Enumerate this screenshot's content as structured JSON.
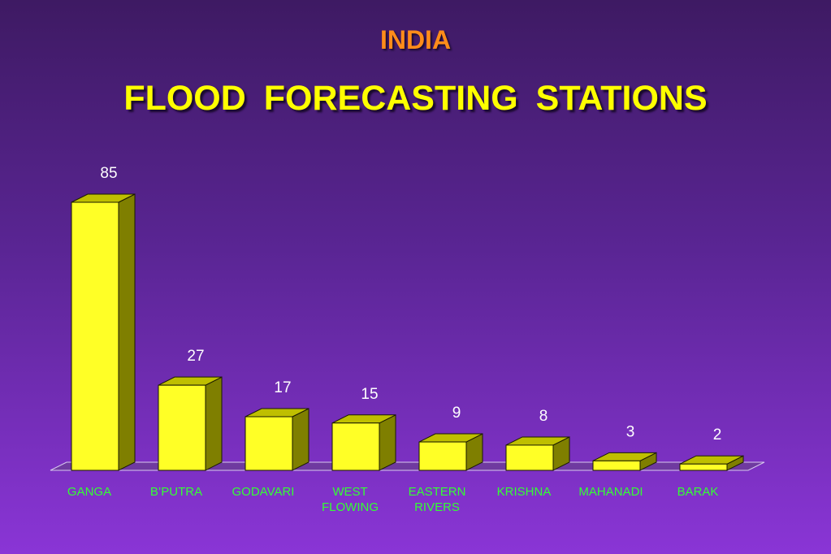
{
  "header": {
    "title": "INDIA",
    "subtitle": "FLOOD  FORECASTING  STATIONS"
  },
  "colors": {
    "bar_front": "#ffff26",
    "bar_side": "#7f7f00",
    "bar_top": "#bfbf00",
    "floor": "#6f3aa0",
    "value_text": "#ffffff",
    "category_text": "#33ff33",
    "title_orange": "#ff8c1a",
    "title_yellow": "#ffff00"
  },
  "chart_data": {
    "type": "bar",
    "title": "FLOOD  FORECASTING  STATIONS",
    "xlabel": "",
    "ylabel": "",
    "categories": [
      [
        "GANGA"
      ],
      [
        "B’PUTRA"
      ],
      [
        "GODAVARI"
      ],
      [
        "WEST",
        "FLOWING"
      ],
      [
        "EASTERN",
        "RIVERS"
      ],
      [
        "KRISHNA"
      ],
      [
        "MAHANADI"
      ],
      [
        "BARAK"
      ]
    ],
    "values": [
      85,
      27,
      17,
      15,
      9,
      8,
      3,
      2
    ],
    "ylim": [
      0,
      85
    ],
    "grid": false,
    "legend": "none",
    "style": "3d-bar"
  }
}
